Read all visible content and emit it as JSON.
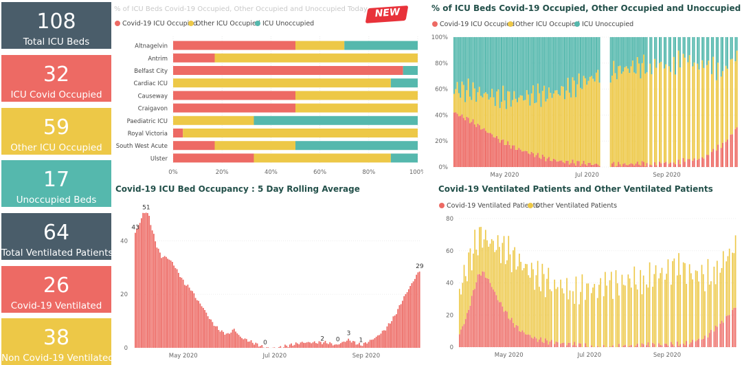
{
  "palette": {
    "covid": "#ED6A64",
    "other": "#EDC847",
    "unocc": "#55B8AD",
    "dark": "#4A5D6A",
    "title": "#23504A"
  },
  "kpis": [
    {
      "value": "108",
      "label": "Total ICU Beds",
      "color": "#4A5D6A"
    },
    {
      "value": "32",
      "label": "ICU Covid Occupied",
      "color": "#ED6A64"
    },
    {
      "value": "59",
      "label": "Other ICU Occupied",
      "color": "#EDC847"
    },
    {
      "value": "17",
      "label": "Unoccupied Beds",
      "color": "#55B8AD"
    },
    {
      "value": "64",
      "label": "Total Ventilated Patients",
      "color": "#4A5D6A"
    },
    {
      "value": "26",
      "label": "Covid-19 Ventilated",
      "color": "#ED6A64"
    },
    {
      "value": "38",
      "label": "Non Covid-19 Ventilated",
      "color": "#EDC847"
    }
  ],
  "badge": "NEW",
  "legend_icu": [
    "Covid-19 ICU Occupied",
    "Other ICU Occupied",
    "ICU Unoccupied"
  ],
  "legend_vent": [
    "Covid-19 Ventilated Patients",
    "Other Ventilated Patients"
  ],
  "chart_data": [
    {
      "type": "bar",
      "orientation": "horizontal-stacked-100",
      "title": "% of ICU Beds Covid-19 Occupied, Other Occupied and Unoccupied Today",
      "categories": [
        "Altnagelvin",
        "Antrim",
        "Belfast City",
        "Cardiac ICU",
        "Causeway",
        "Craigavon",
        "Paediatric ICU",
        "Royal Victoria",
        "South West Acute",
        "Ulster"
      ],
      "series": [
        {
          "name": "Covid-19 ICU Occupied",
          "values": [
            50,
            17,
            94,
            0,
            50,
            50,
            0,
            4,
            17,
            33
          ]
        },
        {
          "name": "Other ICU Occupied",
          "values": [
            20,
            83,
            0,
            89,
            50,
            50,
            33,
            96,
            33,
            56
          ]
        },
        {
          "name": "ICU Unoccupied",
          "values": [
            30,
            0,
            6,
            11,
            0,
            0,
            67,
            0,
            50,
            11
          ]
        }
      ],
      "xticks": [
        "0%",
        "20%",
        "40%",
        "60%",
        "80%",
        "100%"
      ],
      "xlim": [
        0,
        100
      ]
    },
    {
      "type": "bar",
      "orientation": "vertical-stacked-100",
      "title": "% of ICU Beds Covid-19 Occupied, Other Occupied and Unoccupied",
      "xticks": [
        "May 2020",
        "Jul 2020",
        "Sep 2020"
      ],
      "yticks": [
        "0%",
        "20%",
        "40%",
        "60%",
        "80%",
        "100%"
      ],
      "ylim": [
        0,
        100
      ],
      "covid_pct_keypoints": [
        [
          0,
          42
        ],
        [
          10,
          36
        ],
        [
          20,
          28
        ],
        [
          30,
          20
        ],
        [
          40,
          14
        ],
        [
          50,
          10
        ],
        [
          60,
          6
        ],
        [
          70,
          4
        ],
        [
          80,
          3
        ],
        [
          90,
          2
        ],
        [
          100,
          2
        ],
        [
          110,
          2
        ],
        [
          120,
          3
        ],
        [
          130,
          3
        ],
        [
          140,
          4
        ],
        [
          150,
          5
        ],
        [
          160,
          8
        ],
        [
          170,
          18
        ],
        [
          179,
          30
        ]
      ],
      "other_pct_keypoints": [
        [
          0,
          18
        ],
        [
          15,
          25
        ],
        [
          30,
          33
        ],
        [
          50,
          45
        ],
        [
          70,
          55
        ],
        [
          90,
          68
        ],
        [
          110,
          74
        ],
        [
          130,
          76
        ],
        [
          150,
          76
        ],
        [
          170,
          58
        ],
        [
          179,
          55
        ]
      ],
      "gap_ranges": [
        [
          93,
          98
        ]
      ]
    },
    {
      "type": "bar",
      "title": "Covid-19 ICU Bed Occupancy : 5 Day Rolling Average",
      "xticks": [
        "May 2020",
        "Jul 2020",
        "Sep 2020"
      ],
      "yticks": [
        "0",
        "20",
        "40"
      ],
      "ylim": [
        0,
        55
      ],
      "keypoints": [
        [
          0,
          43
        ],
        [
          3,
          47
        ],
        [
          5,
          50
        ],
        [
          7,
          51
        ],
        [
          9,
          49
        ],
        [
          11,
          44
        ],
        [
          14,
          38
        ],
        [
          17,
          34
        ],
        [
          20,
          34
        ],
        [
          24,
          32
        ],
        [
          28,
          28
        ],
        [
          32,
          24
        ],
        [
          36,
          22
        ],
        [
          40,
          18
        ],
        [
          44,
          15
        ],
        [
          48,
          11
        ],
        [
          52,
          8
        ],
        [
          56,
          6
        ],
        [
          60,
          5
        ],
        [
          64,
          7
        ],
        [
          68,
          4
        ],
        [
          72,
          3
        ],
        [
          76,
          2
        ],
        [
          80,
          1
        ],
        [
          84,
          0
        ],
        [
          92,
          0
        ],
        [
          100,
          1
        ],
        [
          108,
          2
        ],
        [
          116,
          2
        ],
        [
          124,
          2
        ],
        [
          130,
          1
        ],
        [
          134,
          2
        ],
        [
          138,
          3
        ],
        [
          142,
          2
        ],
        [
          146,
          1
        ],
        [
          150,
          2
        ],
        [
          156,
          4
        ],
        [
          162,
          7
        ],
        [
          168,
          12
        ],
        [
          174,
          19
        ],
        [
          180,
          25
        ],
        [
          184,
          29
        ]
      ],
      "data_labels": [
        {
          "label": "43"
        },
        {
          "label": "51"
        },
        {
          "label": "0"
        },
        {
          "label": "2"
        },
        {
          "label": "0"
        },
        {
          "label": "3"
        },
        {
          "label": "1"
        },
        {
          "label": "29"
        }
      ]
    },
    {
      "type": "bar",
      "orientation": "vertical-stacked",
      "title": "Covid-19 Ventilated Patients and Other Ventilated Patients",
      "xticks": [
        "May 2020",
        "Jul 2020",
        "Sep 2020"
      ],
      "yticks": [
        "0",
        "20",
        "40",
        "60",
        "80"
      ],
      "ylim": [
        0,
        80
      ],
      "covid_keypoints": [
        [
          0,
          8
        ],
        [
          5,
          20
        ],
        [
          10,
          38
        ],
        [
          13,
          46
        ],
        [
          16,
          46
        ],
        [
          20,
          40
        ],
        [
          25,
          30
        ],
        [
          30,
          22
        ],
        [
          35,
          15
        ],
        [
          40,
          10
        ],
        [
          50,
          5
        ],
        [
          60,
          3
        ],
        [
          70,
          2
        ],
        [
          80,
          1
        ],
        [
          90,
          0
        ],
        [
          120,
          1
        ],
        [
          140,
          2
        ],
        [
          150,
          3
        ],
        [
          160,
          6
        ],
        [
          170,
          14
        ],
        [
          180,
          25
        ]
      ],
      "total_keypoints": [
        [
          0,
          35
        ],
        [
          8,
          58
        ],
        [
          14,
          70
        ],
        [
          20,
          65
        ],
        [
          30,
          60
        ],
        [
          40,
          52
        ],
        [
          50,
          44
        ],
        [
          60,
          40
        ],
        [
          70,
          38
        ],
        [
          80,
          36
        ],
        [
          90,
          36
        ],
        [
          100,
          38
        ],
        [
          110,
          42
        ],
        [
          120,
          44
        ],
        [
          130,
          46
        ],
        [
          140,
          48
        ],
        [
          150,
          46
        ],
        [
          160,
          44
        ],
        [
          170,
          52
        ],
        [
          180,
          64
        ]
      ]
    }
  ]
}
